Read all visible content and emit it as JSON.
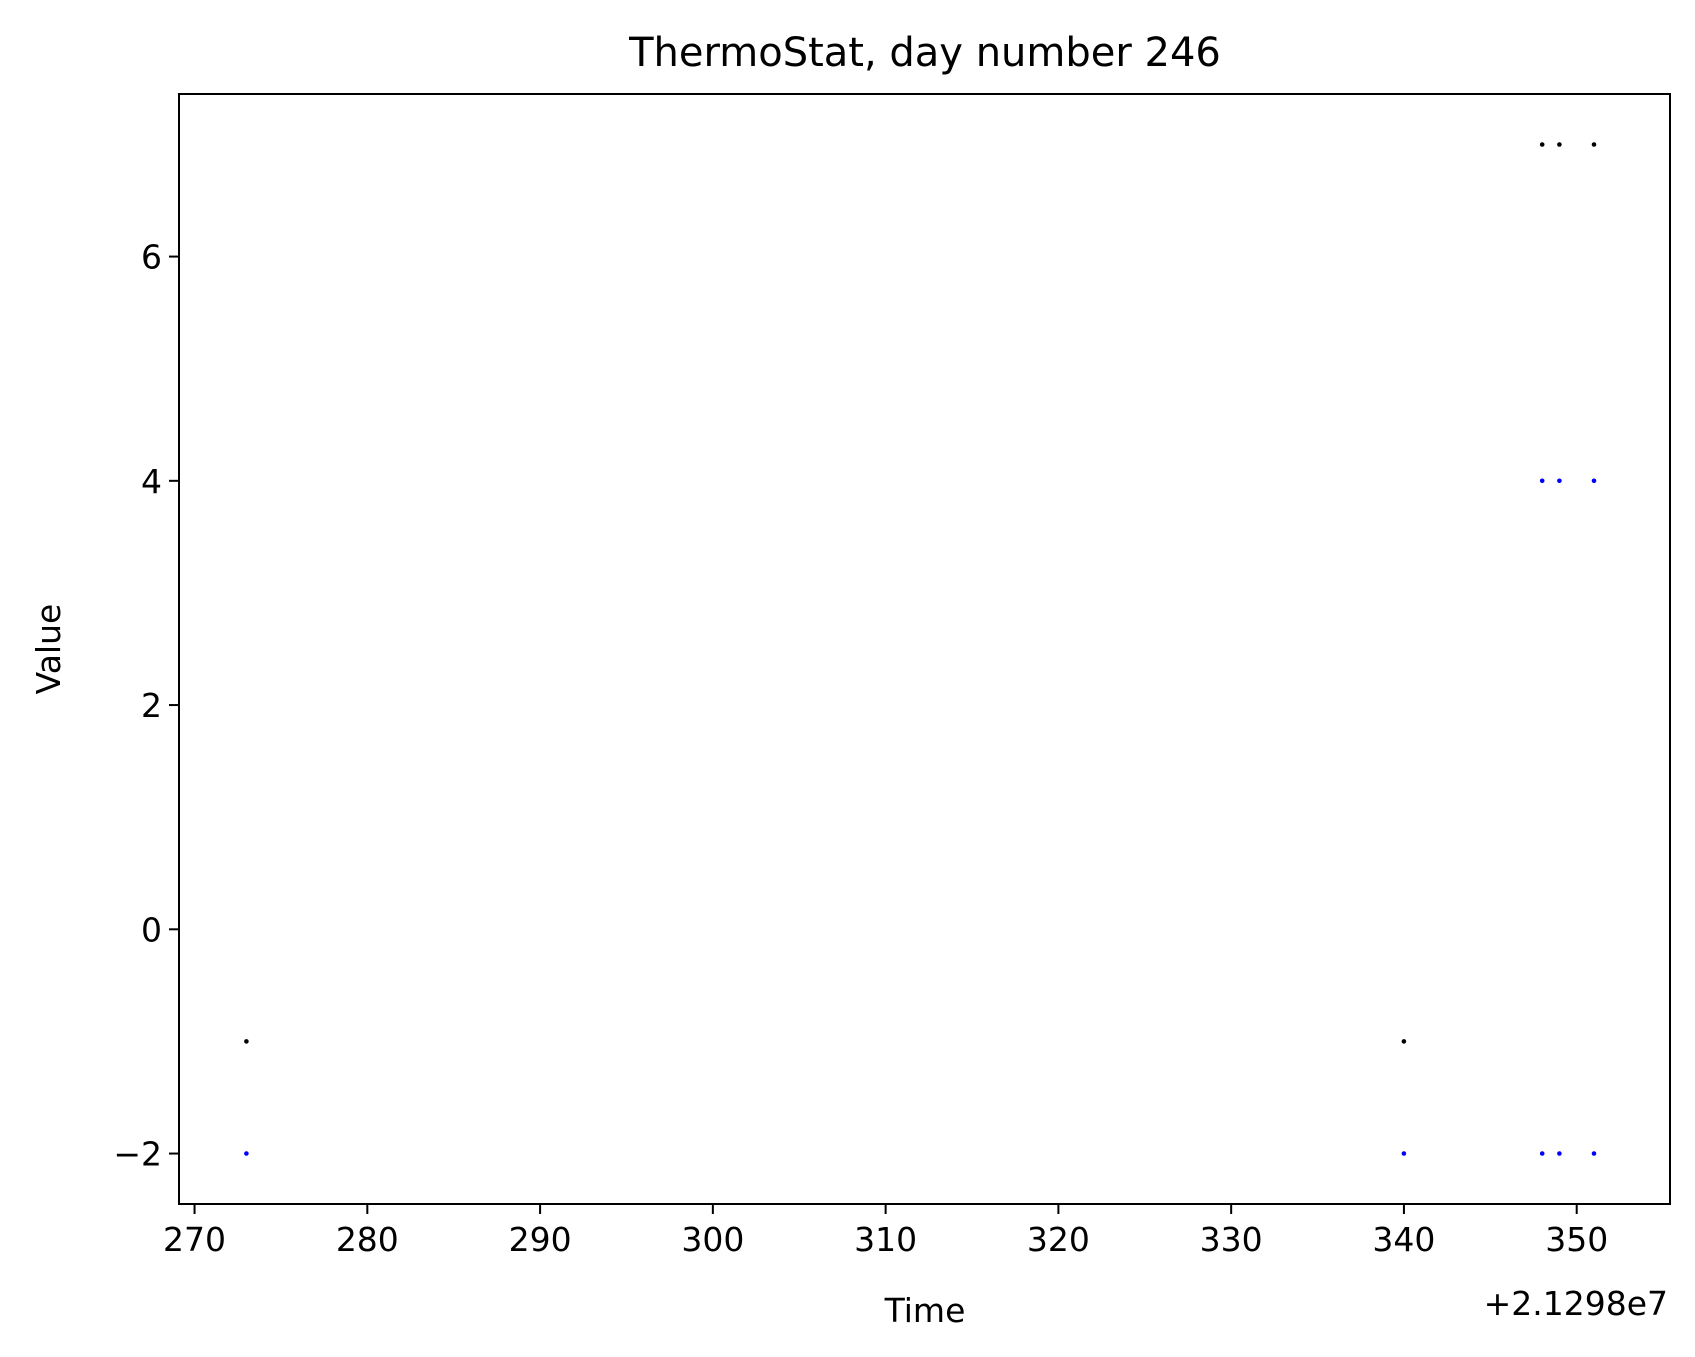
{
  "chart_data": {
    "type": "scatter",
    "title": "ThermoStat, day number 246",
    "xlabel": "Time",
    "ylabel": "Value",
    "x_offset_label": "+2.1298e7",
    "x_ticks": [
      270,
      280,
      290,
      300,
      310,
      320,
      330,
      340,
      350
    ],
    "x_tick_labels": [
      "270",
      "280",
      "290",
      "300",
      "310",
      "320",
      "330",
      "340",
      "350"
    ],
    "y_ticks": [
      -2,
      0,
      2,
      4,
      6
    ],
    "y_tick_labels": [
      "−2",
      "0",
      "2",
      "4",
      "6"
    ],
    "xlim": [
      269.1,
      355.4
    ],
    "ylim": [
      -2.45,
      7.45
    ],
    "grid": false,
    "series": [
      {
        "color": "#000000",
        "x": [
          273,
          340,
          348,
          349,
          351
        ],
        "y": [
          -1,
          -1,
          7,
          7,
          7
        ]
      },
      {
        "color": "#0000ff",
        "x": [
          273,
          340,
          348,
          349,
          351,
          348,
          349,
          351
        ],
        "y": [
          -2,
          -2,
          4,
          4,
          4,
          -2,
          -2,
          -2
        ]
      }
    ]
  }
}
